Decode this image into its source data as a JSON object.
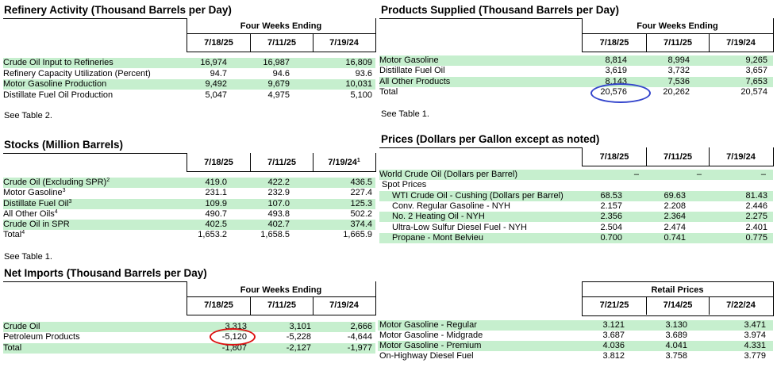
{
  "refinery": {
    "title": "Refinery Activity (Thousand Barrels per Day)",
    "group_header": "Four Weeks Ending",
    "columns": [
      "7/18/25",
      "7/11/25",
      "7/19/24"
    ],
    "rows": [
      {
        "label": "Crude Oil Input to Refineries",
        "values": [
          "16,974",
          "16,987",
          "16,809"
        ]
      },
      {
        "label": "Refinery Capacity Utilization (Percent)",
        "values": [
          "94.7",
          "94.6",
          "93.6"
        ]
      },
      {
        "label": "Motor Gasoline Production",
        "values": [
          "9,492",
          "9,679",
          "10,031"
        ]
      },
      {
        "label": "Distillate Fuel Oil Production",
        "values": [
          "5,047",
          "4,975",
          "5,100"
        ]
      }
    ],
    "note": "See Table 2."
  },
  "stocks": {
    "title": "Stocks (Million Barrels)",
    "columns": [
      "7/18/25",
      "7/11/25",
      "7/19/24"
    ],
    "col3_sup": "1",
    "rows": [
      {
        "label": "Crude Oil (Excluding SPR)",
        "sup": "2",
        "values": [
          "419.0",
          "422.2",
          "436.5"
        ]
      },
      {
        "label": "Motor Gasoline",
        "sup": "3",
        "values": [
          "231.1",
          "232.9",
          "227.4"
        ]
      },
      {
        "label": "Distillate Fuel Oil",
        "sup": "3",
        "values": [
          "109.9",
          "107.0",
          "125.3"
        ]
      },
      {
        "label": "All Other Oils",
        "sup": "4",
        "values": [
          "490.7",
          "493.8",
          "502.2"
        ]
      },
      {
        "label": "Crude Oil in SPR",
        "sup": "",
        "values": [
          "402.5",
          "402.7",
          "374.4"
        ]
      },
      {
        "label": "Total",
        "sup": "4",
        "values": [
          "1,653.2",
          "1,658.5",
          "1,665.9"
        ]
      }
    ],
    "note": "See Table 1."
  },
  "net_imports": {
    "title": "Net Imports (Thousand Barrels per Day)",
    "group_header": "Four Weeks Ending",
    "columns": [
      "7/18/25",
      "7/11/25",
      "7/19/24"
    ],
    "rows": [
      {
        "label": "Crude Oil",
        "values": [
          "3,313",
          "3,101",
          "2,666"
        ]
      },
      {
        "label": "Petroleum Products",
        "values": [
          "-5,120",
          "-5,228",
          "-4,644"
        ]
      },
      {
        "label": "Total",
        "values": [
          "-1,807",
          "-2,127",
          "-1,977"
        ]
      }
    ]
  },
  "products_supplied": {
    "title": "Products Supplied (Thousand Barrels per Day)",
    "group_header": "Four Weeks Ending",
    "columns": [
      "7/18/25",
      "7/11/25",
      "7/19/24"
    ],
    "rows": [
      {
        "label": "Motor Gasoline",
        "values": [
          "8,814",
          "8,994",
          "9,265"
        ]
      },
      {
        "label": "Distillate Fuel Oil",
        "values": [
          "3,619",
          "3,732",
          "3,657"
        ]
      },
      {
        "label": "All Other Products",
        "values": [
          "8,143",
          "7,536",
          "7,653"
        ]
      },
      {
        "label": "Total",
        "values": [
          "20,576",
          "20,262",
          "20,574"
        ]
      }
    ],
    "note": "See Table 1."
  },
  "prices": {
    "title": "Prices (Dollars per Gallon except as noted)",
    "columns": [
      "7/18/25",
      "7/11/25",
      "7/19/24"
    ],
    "rows": [
      {
        "label": "World Crude Oil (Dollars per Barrel)",
        "values": [
          "–",
          "–",
          "–"
        ]
      },
      {
        "label": "Spot Prices",
        "values": [
          "",
          "",
          ""
        ]
      },
      {
        "label": "WTI Crude Oil - Cushing  (Dollars per Barrel)",
        "values": [
          "68.53",
          "69.63",
          "81.43"
        ]
      },
      {
        "label": "Conv. Regular Gasoline - NYH",
        "values": [
          "2.157",
          "2.208",
          "2.446"
        ]
      },
      {
        "label": "No. 2 Heating Oil - NYH",
        "values": [
          "2.356",
          "2.364",
          "2.275"
        ]
      },
      {
        "label": "Ultra-Low Sulfur Diesel Fuel - NYH",
        "values": [
          "2.504",
          "2.474",
          "2.401"
        ]
      },
      {
        "label": "Propane - Mont Belvieu",
        "values": [
          "0.700",
          "0.741",
          "0.775"
        ]
      }
    ]
  },
  "retail": {
    "group_header": "Retail Prices",
    "columns": [
      "7/21/25",
      "7/14/25",
      "7/22/24"
    ],
    "rows": [
      {
        "label": "Motor Gasoline - Regular",
        "values": [
          "3.121",
          "3.130",
          "3.471"
        ]
      },
      {
        "label": "Motor Gasoline - Midgrade",
        "values": [
          "3.687",
          "3.689",
          "3.974"
        ]
      },
      {
        "label": "Motor Gasoline - Premium",
        "values": [
          "4.036",
          "4.041",
          "4.331"
        ]
      },
      {
        "label": "On-Highway Diesel Fuel",
        "values": [
          "3.812",
          "3.758",
          "3.779"
        ]
      }
    ]
  },
  "annotations": {
    "blue_circle_color": "#3344cc",
    "red_circle_color": "#dd1111"
  }
}
